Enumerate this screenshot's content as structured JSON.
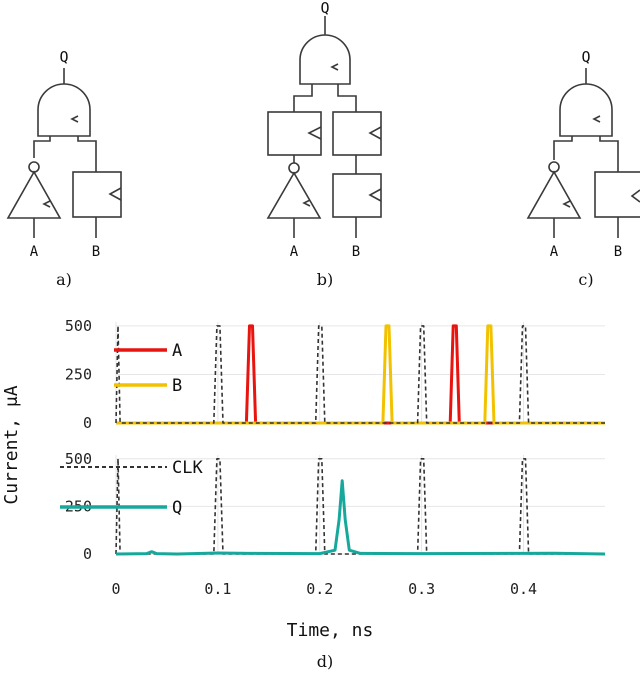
{
  "circuits": {
    "a": {
      "output": "Q",
      "input_a": "A",
      "input_b": "B",
      "caption": "a)"
    },
    "b": {
      "output": "Q",
      "input_a": "A",
      "input_b": "B",
      "caption": "b)"
    },
    "c": {
      "output": "Q",
      "input_a": "A",
      "input_b": "B",
      "caption": "c)"
    }
  },
  "chart_caption": "d)",
  "chart_data": {
    "type": "line",
    "xlabel": "Time, ns",
    "ylabel": "Current, μA",
    "xlim": [
      0,
      0.48
    ],
    "x_ticks": [
      "0",
      "0.1",
      "0.2",
      "0.3",
      "0.4"
    ],
    "x_tick_values": [
      0,
      0.1,
      0.2,
      0.3,
      0.4
    ],
    "grid": true,
    "panels": [
      {
        "ylim": [
          0,
          520
        ],
        "y_ticks": [
          "0",
          "250",
          "500"
        ],
        "y_tick_values": [
          0,
          250,
          500
        ],
        "legend_position": "left",
        "series": [
          {
            "name": "A",
            "color": "#e8140f",
            "style": "solid",
            "x": [
              0,
              0.128,
              0.131,
              0.134,
              0.137,
              0.328,
              0.331,
              0.334,
              0.337,
              0.48
            ],
            "y": [
              0,
              0,
              500,
              500,
              0,
              0,
              500,
              500,
              0,
              0
            ]
          },
          {
            "name": "B",
            "color": "#f2c200",
            "style": "solid",
            "x": [
              0,
              0.262,
              0.265,
              0.268,
              0.271,
              0.362,
              0.365,
              0.368,
              0.371,
              0.48
            ],
            "y": [
              0,
              0,
              500,
              500,
              0,
              0,
              500,
              500,
              0,
              0
            ]
          },
          {
            "name": "CLK",
            "color": "#333333",
            "style": "dashed",
            "show_legend": false,
            "x": [
              0,
              0.002,
              0.004,
              0.096,
              0.099,
              0.102,
              0.105,
              0.196,
              0.199,
              0.202,
              0.205,
              0.296,
              0.299,
              0.302,
              0.305,
              0.396,
              0.399,
              0.402,
              0.405,
              0.48
            ],
            "y": [
              0,
              500,
              0,
              0,
              500,
              500,
              0,
              0,
              500,
              500,
              0,
              0,
              500,
              500,
              0,
              0,
              500,
              500,
              0,
              0
            ]
          }
        ]
      },
      {
        "ylim": [
          0,
          520
        ],
        "y_ticks": [
          "0",
          "250",
          "500"
        ],
        "y_tick_values": [
          0,
          250,
          500
        ],
        "legend_position": "left",
        "series": [
          {
            "name": "CLK",
            "color": "#333333",
            "style": "dashed",
            "x": [
              0,
              0.002,
              0.004,
              0.096,
              0.099,
              0.102,
              0.105,
              0.196,
              0.199,
              0.202,
              0.205,
              0.296,
              0.299,
              0.302,
              0.305,
              0.396,
              0.399,
              0.402,
              0.405,
              0.48
            ],
            "y": [
              0,
              500,
              0,
              0,
              500,
              500,
              0,
              0,
              500,
              500,
              0,
              0,
              500,
              500,
              0,
              0,
              500,
              500,
              0,
              0
            ]
          },
          {
            "name": "Q",
            "color": "#17a89c",
            "style": "solid",
            "x": [
              0,
              0.03,
              0.035,
              0.04,
              0.06,
              0.1,
              0.13,
              0.2,
              0.215,
              0.219,
              0.222,
              0.225,
              0.229,
              0.24,
              0.3,
              0.4,
              0.43,
              0.48
            ],
            "y": [
              0,
              2,
              12,
              2,
              0,
              5,
              3,
              2,
              20,
              180,
              385,
              180,
              20,
              3,
              2,
              3,
              4,
              0
            ]
          }
        ]
      }
    ]
  }
}
